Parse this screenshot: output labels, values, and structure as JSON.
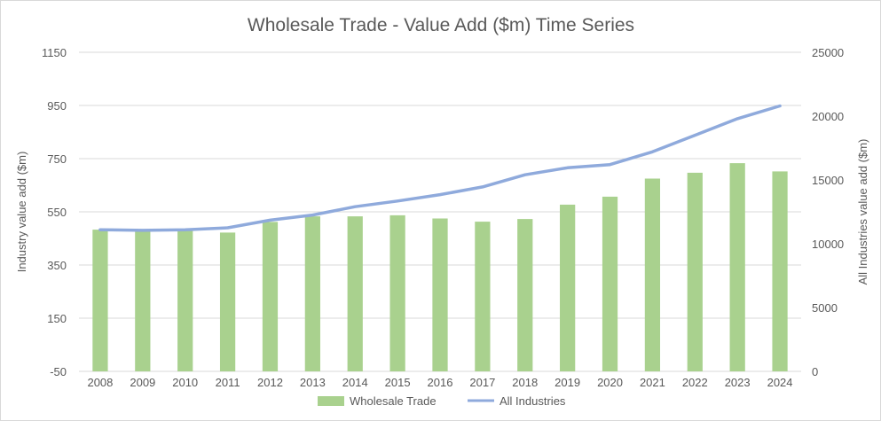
{
  "chart_data": {
    "type": "bar",
    "title": "Wholesale Trade - Value Add ($m) Time Series",
    "ylabel": "Industry value add ($m)",
    "y2label": "All Industries value add ($m)",
    "categories": [
      "2008",
      "2009",
      "2010",
      "2011",
      "2012",
      "2013",
      "2014",
      "2015",
      "2016",
      "2017",
      "2018",
      "2019",
      "2020",
      "2021",
      "2022",
      "2023",
      "2024"
    ],
    "ylim": [
      -50,
      1150
    ],
    "yticks": [
      -50,
      150,
      350,
      550,
      750,
      950,
      1150
    ],
    "y2lim": [
      0,
      25000
    ],
    "y2ticks": [
      0,
      5000,
      10000,
      15000,
      20000,
      25000
    ],
    "grid": true,
    "legend_position": "bottom",
    "series": [
      {
        "name": "Wholesale Trade",
        "type": "bar",
        "axis": "left",
        "color": "#a9d18e",
        "values": [
          483,
          483,
          482,
          472,
          512,
          533,
          533,
          537,
          525,
          513,
          523,
          577,
          607,
          675,
          697,
          733,
          702
        ]
      },
      {
        "name": "All Industries",
        "type": "line",
        "axis": "right",
        "color": "#8faadc",
        "values": [
          11100,
          11050,
          11100,
          11250,
          11850,
          12250,
          12900,
          13350,
          13850,
          14450,
          15400,
          15950,
          16200,
          17200,
          18500,
          19800,
          20800
        ]
      }
    ]
  }
}
